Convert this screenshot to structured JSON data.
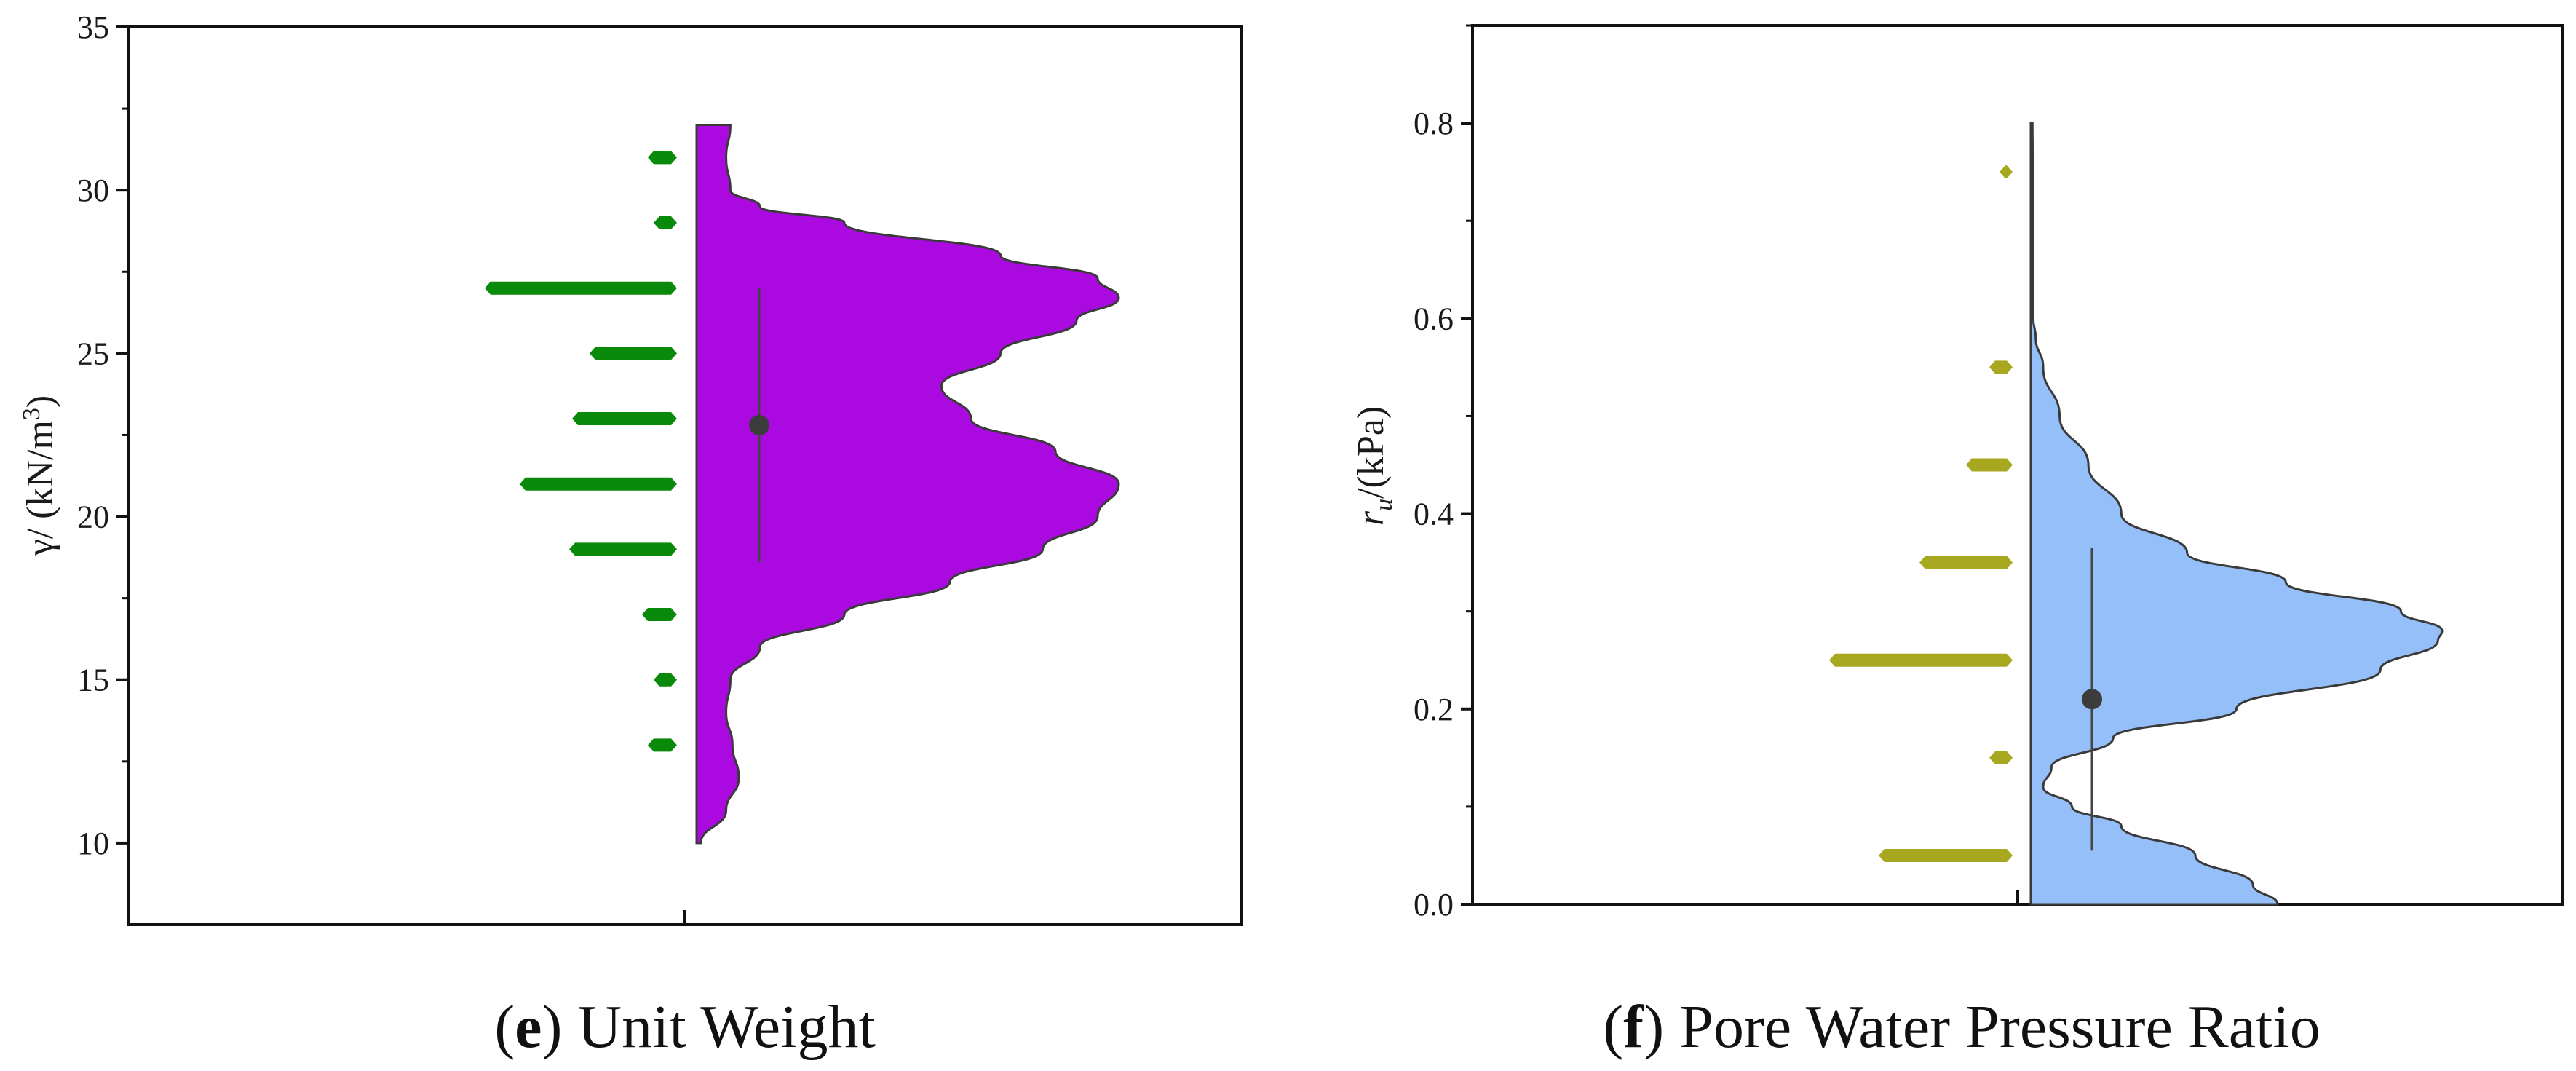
{
  "chart_data": [
    {
      "type": "violin",
      "panel_id": "e",
      "caption_letter": "e",
      "caption_text": " Unit Weight",
      "ylabel_main": "γ/ (kN/m",
      "ylabel_sup": "3",
      "ylabel_close": ")",
      "ylim": [
        7.5,
        35
      ],
      "yticks": [
        10,
        15,
        20,
        25,
        30,
        35
      ],
      "ytick_labels": [
        "10",
        "15",
        "20",
        "25",
        "30",
        "35"
      ],
      "histogram": {
        "color": "#0a8a0a",
        "bins": [
          {
            "y": 13,
            "count": 1
          },
          {
            "y": 15,
            "count": 0.8
          },
          {
            "y": 17,
            "count": 1.2
          },
          {
            "y": 19,
            "count": 3.7
          },
          {
            "y": 21,
            "count": 5.4
          },
          {
            "y": 23,
            "count": 3.6
          },
          {
            "y": 25,
            "count": 3.0
          },
          {
            "y": 27,
            "count": 6.6
          },
          {
            "y": 29,
            "count": 0.8
          },
          {
            "y": 31,
            "count": 1.0
          }
        ]
      },
      "density": {
        "fill": "#aa0ae0",
        "stroke": "#3a3a3a",
        "points": [
          [
            10,
            0.01
          ],
          [
            11,
            0.07
          ],
          [
            12,
            0.1
          ],
          [
            13,
            0.085
          ],
          [
            14,
            0.07
          ],
          [
            15,
            0.08
          ],
          [
            16,
            0.15
          ],
          [
            17,
            0.35
          ],
          [
            18,
            0.6
          ],
          [
            19,
            0.82
          ],
          [
            20,
            0.95
          ],
          [
            21,
            1.0
          ],
          [
            22,
            0.85
          ],
          [
            23,
            0.65
          ],
          [
            24,
            0.58
          ],
          [
            25,
            0.72
          ],
          [
            26,
            0.9
          ],
          [
            26.7,
            1.0
          ],
          [
            27.3,
            0.95
          ],
          [
            28,
            0.72
          ],
          [
            29,
            0.35
          ],
          [
            29.5,
            0.15
          ],
          [
            30,
            0.08
          ],
          [
            31,
            0.07
          ],
          [
            32,
            0.08
          ]
        ]
      },
      "point": {
        "mean": 22.8,
        "whisker_low": 18.6,
        "whisker_high": 27.0
      }
    },
    {
      "type": "violin",
      "panel_id": "f",
      "caption_letter": "f",
      "caption_text": " Pore Water Pressure Ratio",
      "ylabel_main": "r",
      "ylabel_sub": "u",
      "ylabel_rest": "/(kPa)",
      "ylim": [
        0.0,
        0.9
      ],
      "yticks": [
        0.0,
        0.2,
        0.4,
        0.6,
        0.8
      ],
      "ytick_labels": [
        "0.0",
        "0.2",
        "0.4",
        "0.6",
        "0.8"
      ],
      "histogram": {
        "color": "#a8a820",
        "bins": [
          {
            "y": 0.05,
            "count": 4.6
          },
          {
            "y": 0.15,
            "count": 0.8
          },
          {
            "y": 0.25,
            "count": 6.3
          },
          {
            "y": 0.35,
            "count": 3.2
          },
          {
            "y": 0.45,
            "count": 1.6
          },
          {
            "y": 0.55,
            "count": 0.8
          },
          {
            "y": 0.75,
            "count": 0.3
          }
        ]
      },
      "density": {
        "fill": "#94bff8",
        "stroke": "#3a3a3a",
        "points": [
          [
            0.0,
            0.6
          ],
          [
            0.02,
            0.54
          ],
          [
            0.05,
            0.4
          ],
          [
            0.08,
            0.22
          ],
          [
            0.1,
            0.1
          ],
          [
            0.12,
            0.03
          ],
          [
            0.14,
            0.05
          ],
          [
            0.17,
            0.2
          ],
          [
            0.2,
            0.5
          ],
          [
            0.24,
            0.85
          ],
          [
            0.27,
            0.99
          ],
          [
            0.28,
            1.0
          ],
          [
            0.3,
            0.9
          ],
          [
            0.33,
            0.62
          ],
          [
            0.36,
            0.38
          ],
          [
            0.4,
            0.22
          ],
          [
            0.45,
            0.14
          ],
          [
            0.5,
            0.07
          ],
          [
            0.55,
            0.03
          ],
          [
            0.58,
            0.012
          ],
          [
            0.6,
            0.006
          ],
          [
            0.65,
            0.005
          ],
          [
            0.7,
            0.006
          ],
          [
            0.75,
            0.005
          ],
          [
            0.8,
            0.004
          ]
        ]
      },
      "point": {
        "mean": 0.21,
        "whisker_low": 0.055,
        "whisker_high": 0.365
      }
    }
  ]
}
